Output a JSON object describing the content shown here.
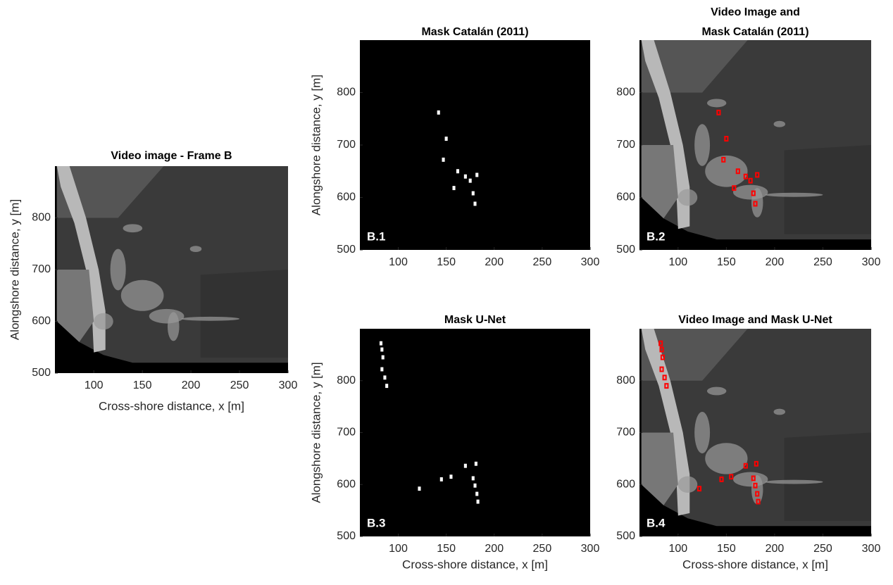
{
  "chart_data": [
    {
      "type": "image",
      "title": [
        "Video image - Frame B"
      ],
      "xlabel": "Cross-shore distance, x [m]",
      "ylabel": "Alongshore distance, y [m]",
      "xlim": [
        60,
        300
      ],
      "ylim": [
        500,
        900
      ],
      "xticks": [
        100,
        150,
        200,
        250,
        300
      ],
      "yticks": [
        500,
        600,
        700,
        800
      ]
    },
    {
      "type": "image",
      "title": [
        "Mask Catalán (2011)"
      ],
      "ylabel": "Alongshore distance, y [m]",
      "panel_label": "B.1",
      "xlim": [
        60,
        300
      ],
      "ylim": [
        500,
        900
      ],
      "xticks": [
        100,
        150,
        200,
        250,
        300
      ],
      "yticks": [
        500,
        600,
        700,
        800
      ]
    },
    {
      "type": "image",
      "title": [
        "Video Image and",
        "Mask Catalán (2011)"
      ],
      "panel_label": "B.2",
      "xlim": [
        60,
        300
      ],
      "ylim": [
        500,
        900
      ],
      "xticks": [
        100,
        150,
        200,
        250,
        300
      ],
      "yticks": [
        500,
        600,
        700,
        800
      ]
    },
    {
      "type": "image",
      "title": [
        "Mask U-Net"
      ],
      "xlabel": "Cross-shore distance, x [m]",
      "ylabel": "Alongshore distance, y [m]",
      "panel_label": "B.3",
      "xlim": [
        60,
        300
      ],
      "ylim": [
        500,
        900
      ],
      "xticks": [
        100,
        150,
        200,
        250,
        300
      ],
      "yticks": [
        500,
        600,
        700,
        800
      ]
    },
    {
      "type": "image",
      "title": [
        "Video Image and Mask U-Net"
      ],
      "xlabel": "Cross-shore distance, x [m]",
      "panel_label": "B.4",
      "xlim": [
        60,
        300
      ],
      "ylim": [
        500,
        900
      ],
      "xticks": [
        100,
        150,
        200,
        250,
        300
      ],
      "yticks": [
        500,
        600,
        700,
        800
      ]
    }
  ]
}
